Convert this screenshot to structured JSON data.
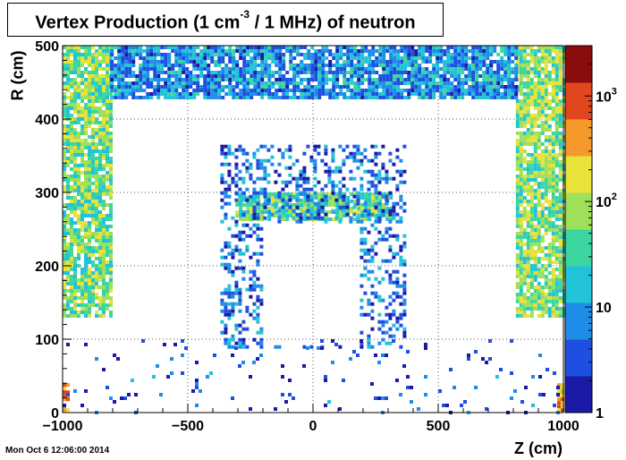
{
  "chart_data": {
    "type": "heatmap",
    "title_main": "Vertex Production (1 cm",
    "title_sup": "-3",
    "title_tail": " / 1 MHz) of   neutron",
    "xlabel": "Z (cm)",
    "ylabel": "R (cm)",
    "xlim": [
      -1000,
      1000
    ],
    "ylim": [
      0,
      500
    ],
    "x_ticks": [
      -1000,
      -500,
      0,
      500,
      1000
    ],
    "x_tick_labels": [
      "−1000",
      "−500",
      "0",
      "500",
      "1000"
    ],
    "y_ticks": [
      0,
      100,
      200,
      300,
      400,
      500
    ],
    "y_tick_labels": [
      "0",
      "100",
      "200",
      "300",
      "400",
      "500"
    ],
    "grid": true,
    "z_scale": "log",
    "zlim": [
      1,
      3000
    ],
    "z_ticks": [
      1,
      10,
      100,
      1000
    ],
    "z_tick_bases": [
      "1",
      "10",
      "10",
      "10"
    ],
    "z_tick_exps": [
      "",
      "",
      "2",
      "3"
    ],
    "colormap": [
      "#1a1aa6",
      "#1f4fe0",
      "#1e8de8",
      "#22c2d8",
      "#3dd6a0",
      "#9ee05a",
      "#e8e23a",
      "#f59a2a",
      "#e2461e",
      "#8a0d0d"
    ],
    "regions": [
      {
        "name": "forward-calorimeter-left",
        "z": [
          -1000,
          -810
        ],
        "r": [
          130,
          500
        ],
        "level": 60
      },
      {
        "name": "forward-calorimeter-right",
        "z": [
          810,
          1000
        ],
        "r": [
          130,
          500
        ],
        "level": 60
      },
      {
        "name": "outer-barrel-top",
        "z": [
          -810,
          810
        ],
        "r": [
          430,
          500
        ],
        "level": 8
      },
      {
        "name": "calorimeter-band",
        "z": [
          -310,
          310
        ],
        "r": [
          265,
          300
        ],
        "level": 40
      },
      {
        "name": "inner-shell",
        "z": [
          -370,
          370
        ],
        "r": [
          90,
          365
        ],
        "level": 5
      },
      {
        "name": "beam-hot-spot-left",
        "z": [
          -1000,
          -975
        ],
        "r": [
          5,
          40
        ],
        "level": 400
      },
      {
        "name": "beam-hot-spot-right",
        "z": [
          975,
          1000
        ],
        "r": [
          5,
          40
        ],
        "level": 400
      },
      {
        "name": "floor-scatter",
        "z": [
          -1000,
          1000
        ],
        "r": [
          0,
          100
        ],
        "level": 3
      }
    ]
  },
  "timestamp": "Mon Oct  6 12:06:00 2014"
}
